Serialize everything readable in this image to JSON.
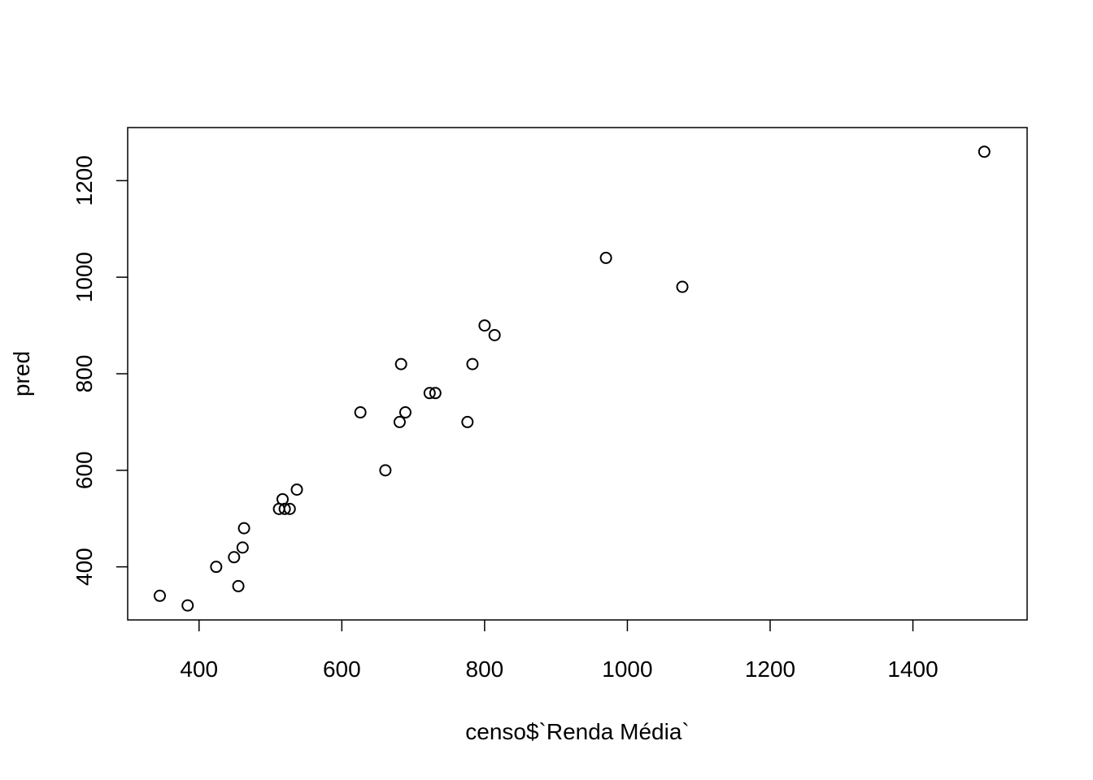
{
  "chart_data": {
    "type": "scatter",
    "title": "",
    "xlabel": "censo$`Renda Média`",
    "ylabel": "pred",
    "xlim": [
      300,
      1560
    ],
    "ylim": [
      290,
      1310
    ],
    "xticks": [
      400,
      600,
      800,
      1000,
      1200,
      1400
    ],
    "yticks": [
      400,
      600,
      800,
      1000,
      1200
    ],
    "grid": false,
    "marker": "open-circle",
    "points": [
      {
        "x": 345,
        "y": 340
      },
      {
        "x": 384,
        "y": 320
      },
      {
        "x": 424,
        "y": 400
      },
      {
        "x": 449,
        "y": 420
      },
      {
        "x": 455,
        "y": 360
      },
      {
        "x": 461,
        "y": 440
      },
      {
        "x": 463,
        "y": 480
      },
      {
        "x": 512,
        "y": 520
      },
      {
        "x": 517,
        "y": 540
      },
      {
        "x": 520,
        "y": 520
      },
      {
        "x": 527,
        "y": 520
      },
      {
        "x": 537,
        "y": 560
      },
      {
        "x": 626,
        "y": 720
      },
      {
        "x": 661,
        "y": 600
      },
      {
        "x": 681,
        "y": 700
      },
      {
        "x": 683,
        "y": 820
      },
      {
        "x": 689,
        "y": 720
      },
      {
        "x": 723,
        "y": 760
      },
      {
        "x": 731,
        "y": 760
      },
      {
        "x": 776,
        "y": 700
      },
      {
        "x": 783,
        "y": 820
      },
      {
        "x": 800,
        "y": 900
      },
      {
        "x": 814,
        "y": 880
      },
      {
        "x": 970,
        "y": 1040
      },
      {
        "x": 1077,
        "y": 980
      },
      {
        "x": 1500,
        "y": 1260
      }
    ]
  }
}
